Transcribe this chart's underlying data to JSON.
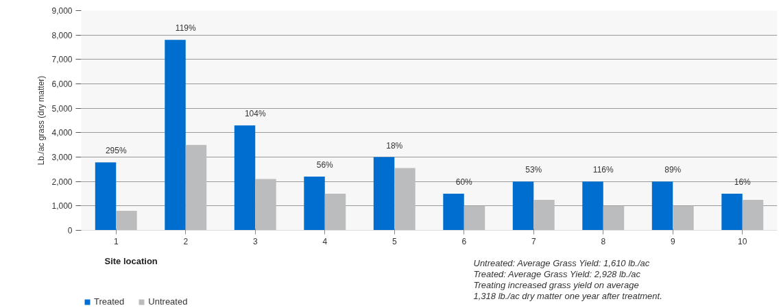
{
  "chart_data": {
    "type": "bar",
    "ylabel": "Lb./ac grass (dry matter)",
    "xlabel": "Site location",
    "categories": [
      "1",
      "2",
      "3",
      "4",
      "5",
      "6",
      "7",
      "8",
      "9",
      "10"
    ],
    "series": [
      {
        "name": "Treated",
        "color": "#006ecf",
        "values": [
          2780,
          7800,
          4300,
          2200,
          3000,
          1500,
          2000,
          2000,
          2000,
          1500
        ]
      },
      {
        "name": "Untreated",
        "color": "#bbbcbe",
        "values": [
          800,
          3500,
          2100,
          1500,
          2550,
          1000,
          1250,
          1000,
          1000,
          1250
        ]
      }
    ],
    "ylim": [
      0,
      9000
    ],
    "yticks": [
      {
        "value": 0,
        "label": "0"
      },
      {
        "value": 1000,
        "label": "1,000"
      },
      {
        "value": 2000,
        "label": "2,000"
      },
      {
        "value": 3000,
        "label": "3,000"
      },
      {
        "value": 4000,
        "label": "4,000"
      },
      {
        "value": 5000,
        "label": "5,000"
      },
      {
        "value": 6000,
        "label": "6,000"
      },
      {
        "value": 7000,
        "label": "7,000"
      },
      {
        "value": 8000,
        "label": "8,000"
      },
      {
        "value": 9000,
        "label": "9,000"
      }
    ],
    "grid": "y",
    "legend": "bottom left",
    "annotations": [
      {
        "text": "295%",
        "x": "1",
        "y": 2780
      },
      {
        "text": "119%",
        "x": "2",
        "y": 7800
      },
      {
        "text": "104%",
        "x": "3",
        "y": 4300
      },
      {
        "text": "56%",
        "x": "4",
        "y": 2200
      },
      {
        "text": "18%",
        "x": "5",
        "y": 3000
      },
      {
        "text": "60%",
        "x": "6",
        "y": 1500
      },
      {
        "text": "53%",
        "x": "7",
        "y": 2000
      },
      {
        "text": "116%",
        "x": "8",
        "y": 2000
      },
      {
        "text": "89%",
        "x": "9",
        "y": 2000
      },
      {
        "text": "16%",
        "x": "10",
        "y": 1500
      },
      "Untreated: Average Grass Yield: 1,610 lb./ac",
      "Treated: Average Grass Yield: 2,928 lb./ac",
      "Treating increased grass yield on average",
      "1,318 lb./ac dry matter one year after treatment."
    ]
  }
}
